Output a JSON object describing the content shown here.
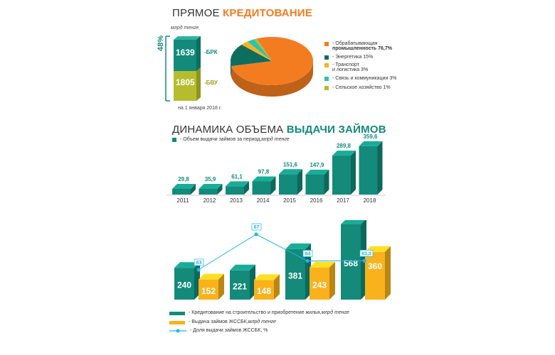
{
  "colors": {
    "teal": "#138a7a",
    "teal_dark": "#0d6e60",
    "teal_top": "#2fb39e",
    "orange": "#f47c20",
    "yellow": "#f9b21b",
    "olive": "#b5bd2e",
    "cyan": "#21b5e6",
    "mint": "#2cc3b0"
  },
  "section1": {
    "title_light": "ПРЯМОЕ ",
    "title_bold": "КРЕДИТОВАНИЕ",
    "unit": "млрд тенге",
    "pct": "48%",
    "date_note": "на 1 января 2018 г.",
    "stack": [
      {
        "value": "1639",
        "label": "-БРК"
      },
      {
        "value": "1805",
        "label": "-БВУ"
      }
    ],
    "pie_legend": [
      {
        "line1": "- Обрабатывающая",
        "line2": "промышленность 76,7%"
      },
      {
        "line1": "- Энергетика 15%",
        "line2": ""
      },
      {
        "line1": "- Транспорт",
        "line2": "и логистика 3%"
      },
      {
        "line1": "- Связь и коммуникации 3%",
        "line2": ""
      },
      {
        "line1": "- Сельское хозяйство 1%",
        "line2": ""
      }
    ]
  },
  "section2": {
    "title_light": "ДИНАМИКА ОБЪЕМА ",
    "title_bold": "ВЫДАЧИ ЗАЙМОВ",
    "legend": "- Объем выдачи займов за период,",
    "legend_unit": " млрд тенге"
  },
  "section3": {
    "legend": [
      {
        "text": "- Кредитование на строительство и приобретение жилья,",
        "unit": " млрд тенге"
      },
      {
        "text": "- Выдача займов ЖССБК,",
        "unit": " млрд тенге"
      },
      {
        "text": "- Доля выдачи займов ЖССБК, %",
        "unit": ""
      }
    ]
  },
  "chart_data": [
    {
      "type": "pie",
      "slices": [
        {
          "name": "Обрабатывающая промышленность",
          "value": 76.7,
          "color": "#f47c20"
        },
        {
          "name": "Энергетика",
          "value": 15,
          "color": "#0d6e60"
        },
        {
          "name": "Транспорт и логистика",
          "value": 3,
          "color": "#f9b21b"
        },
        {
          "name": "Связь и коммуникации",
          "value": 3,
          "color": "#2cc3b0"
        },
        {
          "name": "Сельское хозяйство",
          "value": 1,
          "color": "#b5bd2e"
        }
      ]
    },
    {
      "type": "bar",
      "categories": [
        "2011",
        "2012",
        "2013",
        "2014",
        "2015",
        "2016",
        "2017",
        "2018"
      ],
      "values": [
        29.8,
        35.9,
        61.1,
        97.8,
        151.6,
        147.9,
        289.8,
        359.6
      ],
      "labels": [
        "29,8",
        "35,9",
        "61,1",
        "97,8",
        "151,6",
        "147,9",
        "289,8",
        "359,6"
      ],
      "ylim": [
        0,
        380
      ]
    },
    {
      "type": "bar",
      "groups": 4,
      "series": [
        {
          "name": "Кредитование на строительство и приобретение жилья",
          "values": [
            240,
            221,
            381,
            568
          ],
          "labels": [
            "240",
            "221",
            "381",
            "568"
          ],
          "color": "#138a7a"
        },
        {
          "name": "Выдача займов ЖССБК",
          "values": [
            152,
            148,
            243,
            360
          ],
          "labels": [
            "152",
            "148",
            "243",
            "360"
          ],
          "color": "#f9b21b"
        }
      ],
      "line": {
        "name": "Доля выдачи займов ЖССБК, %",
        "values": [
          63,
          67,
          64,
          63.3
        ],
        "labels": [
          "63",
          "67",
          "64",
          "63,3"
        ],
        "color": "#21b5e6",
        "ylim": [
          62,
          68
        ]
      },
      "ylim": [
        0,
        600
      ]
    }
  ]
}
